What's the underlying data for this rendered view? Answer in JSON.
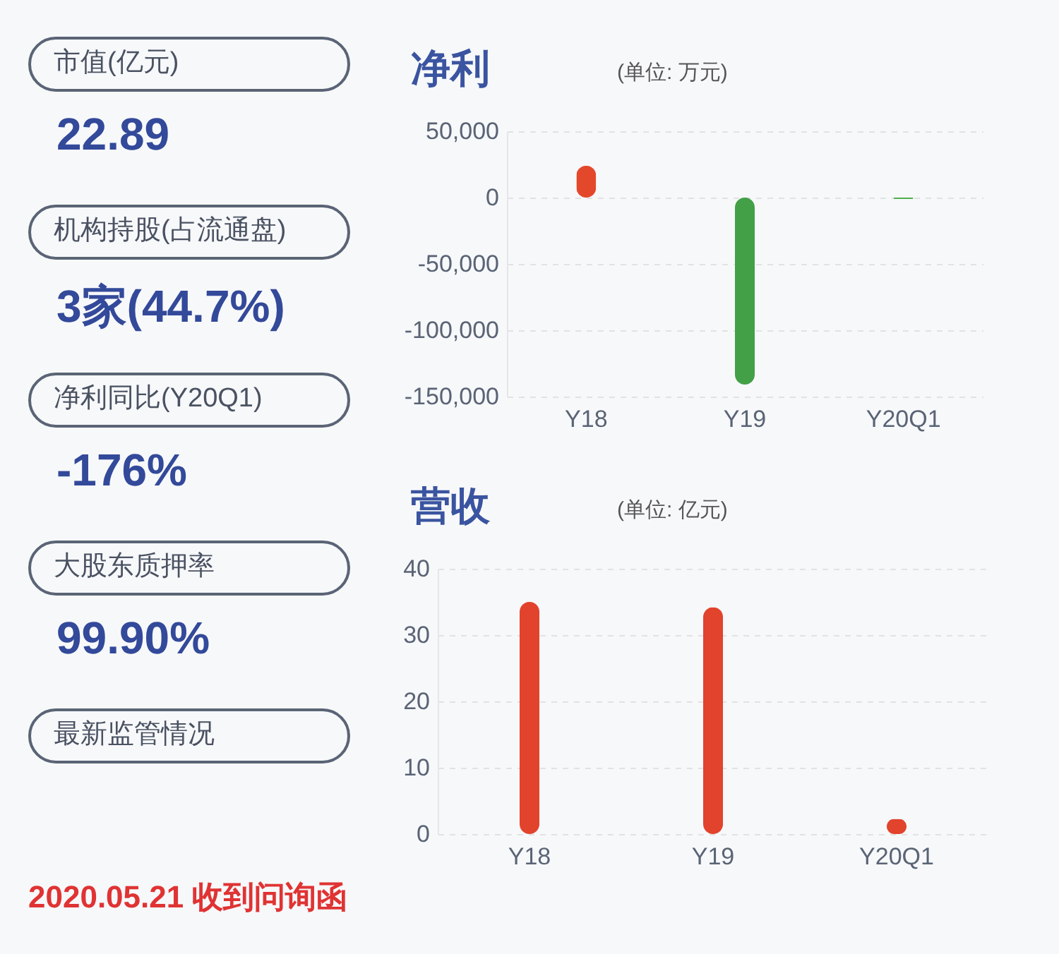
{
  "chart_data": [
    {
      "type": "other",
      "annotations": [
        "市值(亿元)",
        "22.89",
        "机构持股(占流通盘)",
        "3家(44.7%)",
        "净利同比(Y20Q1)",
        "-176%",
        "大股东质押率",
        "99.90%",
        "最新监管情况",
        "2020.05.21 收到问询函"
      ]
    },
    {
      "type": "bar",
      "title": "净利",
      "subtitle": "(单位: 万元)",
      "categories": [
        "Y18",
        "Y19",
        "Y20Q1"
      ],
      "values": [
        24000,
        -141000,
        -1000
      ],
      "colors": [
        "#e4482b",
        "#43a047",
        "#4caf50"
      ],
      "ylim": [
        -150000,
        50000
      ],
      "yticks": [
        {
          "value": -150000,
          "label": "-150,000"
        },
        {
          "value": -100000,
          "label": "-100,000"
        },
        {
          "value": -50000,
          "label": "-50,000"
        },
        0,
        {
          "value": 50000,
          "label": "50,000"
        }
      ],
      "grid": "y"
    },
    {
      "type": "bar",
      "title": "营收",
      "subtitle": "(单位: 亿元)",
      "categories": [
        "Y18",
        "Y19",
        "Y20Q1"
      ],
      "values": [
        35.0,
        34.2,
        2.3
      ],
      "colors": [
        "#e2432c",
        "#e2432c",
        "#e2432c"
      ],
      "ylim": [
        0,
        40
      ],
      "yticks": [
        0,
        10,
        20,
        30,
        40
      ],
      "grid": "y"
    }
  ]
}
